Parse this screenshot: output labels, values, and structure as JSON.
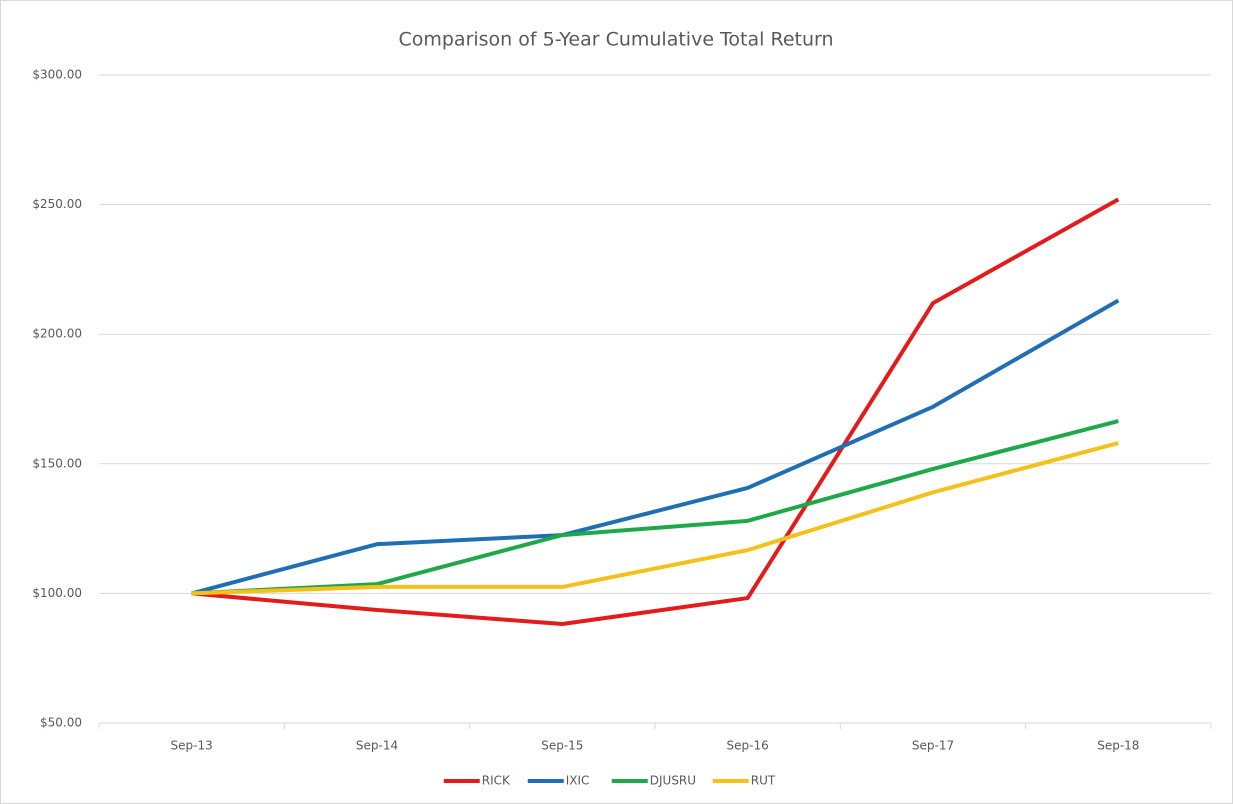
{
  "chart_data": {
    "type": "line",
    "title": "Comparison of 5-Year Cumulative Total Return",
    "categories": [
      "Sep-13",
      "Sep-14",
      "Sep-15",
      "Sep-16",
      "Sep-17",
      "Sep-18"
    ],
    "series": [
      {
        "name": "RICK",
        "color": "#e31b1b",
        "values": [
          100,
          93.6,
          88.2,
          98.2,
          212,
          252
        ]
      },
      {
        "name": "IXIC",
        "color": "#1f6fb4",
        "values": [
          100,
          119,
          122.5,
          140.7,
          172,
          213
        ]
      },
      {
        "name": "DJUSRU",
        "color": "#1fa84a",
        "values": [
          100,
          103.6,
          122.5,
          128,
          148,
          166.5
        ]
      },
      {
        "name": "RUT",
        "color": "#f5c01a",
        "values": [
          100,
          102.5,
          102.5,
          116.7,
          139,
          158
        ]
      }
    ],
    "ylim": [
      50,
      300
    ],
    "yticks": [
      {
        "value": 50,
        "label": "$50.00"
      },
      {
        "value": 100,
        "label": "$100.00"
      },
      {
        "value": 150,
        "label": "$150.00"
      },
      {
        "value": 200,
        "label": "$200.00"
      },
      {
        "value": 250,
        "label": "$250.00"
      },
      {
        "value": 300,
        "label": "$300.00"
      }
    ],
    "grid": true,
    "legend": "bottom"
  }
}
